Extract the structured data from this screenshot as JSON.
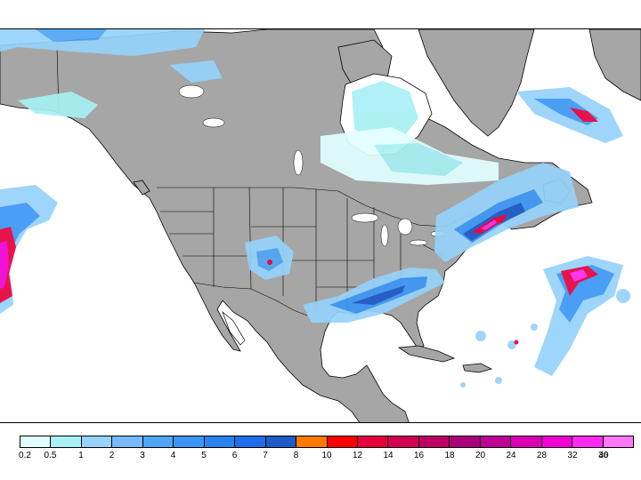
{
  "map": {
    "land_color": "#a6a6a6",
    "ocean_color": "#ffffff",
    "border_color": "#000000"
  },
  "legend": {
    "colors": [
      "#e1ffff",
      "#a8f0f5",
      "#96d2fa",
      "#78b9fa",
      "#50a5f5",
      "#3c96f5",
      "#2882f0",
      "#1e6eeb",
      "#1e5ac8",
      "#ff7800",
      "#ff0000",
      "#e6003c",
      "#d20050",
      "#be0064",
      "#aa0078",
      "#be0096",
      "#dc00b4",
      "#f000d2",
      "#ff28f0",
      "#ff78f5"
    ],
    "labels": [
      "0.2",
      "0.5",
      "1",
      "2",
      "3",
      "4",
      "5",
      "6",
      "7",
      "8",
      "10",
      "12",
      "14",
      "16",
      "18",
      "20",
      "24",
      "28",
      "32",
      "36",
      "40"
    ]
  }
}
